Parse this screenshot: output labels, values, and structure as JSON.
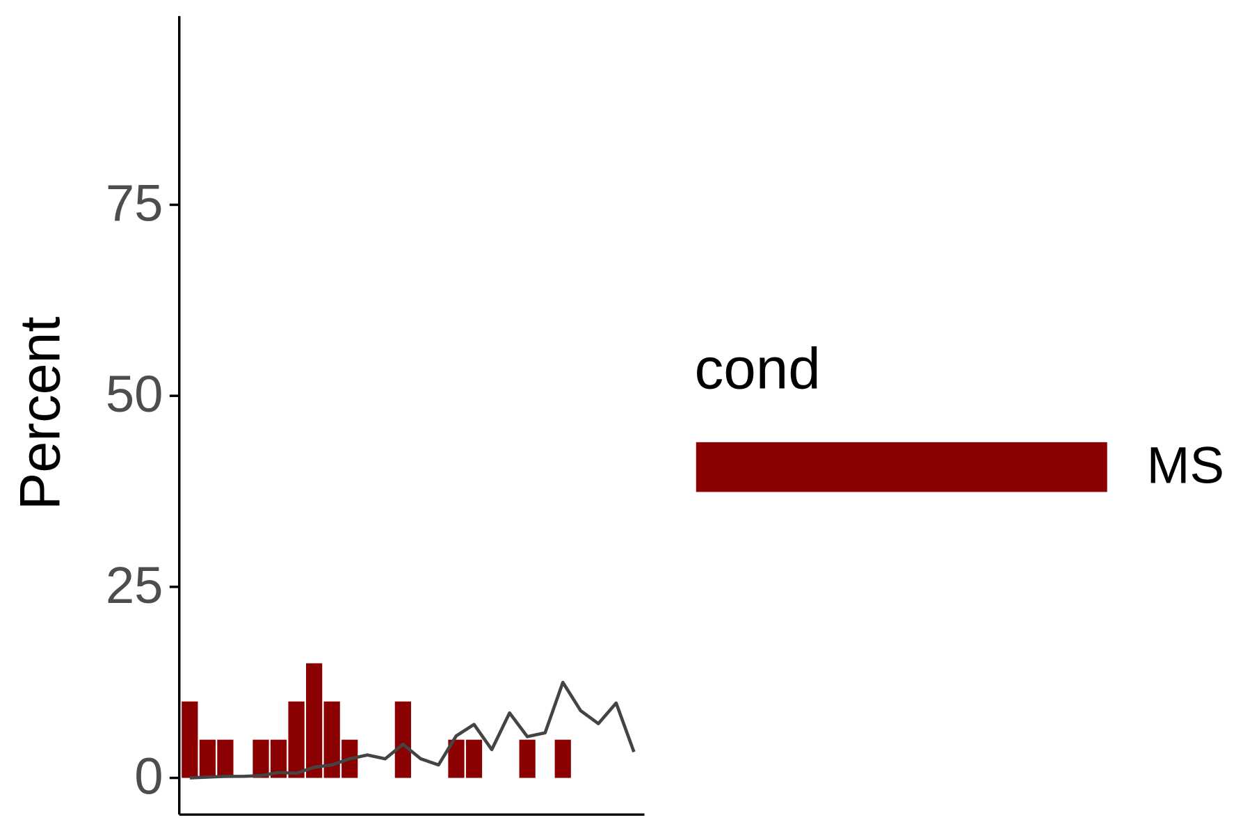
{
  "chart_data": {
    "type": "bar",
    "y_label": "Percent",
    "legend_title": "cond",
    "series": [
      {
        "name": "MS",
        "color": "#8b0000",
        "values": [
          10,
          5,
          5,
          null,
          5,
          5,
          10,
          15,
          10,
          5,
          null,
          null,
          10,
          null,
          null,
          5,
          5,
          null,
          null,
          5,
          null,
          5,
          null,
          null,
          null,
          null
        ]
      }
    ],
    "line": {
      "color": "#444444",
      "values": [
        0,
        0.1,
        0.2,
        0.2,
        0.3,
        0.7,
        0.6,
        1.4,
        1.7,
        2.5,
        3.0,
        2.5,
        4.4,
        2.5,
        1.7,
        5.5,
        7.0,
        3.7,
        8.5,
        5.4,
        5.9,
        12.5,
        8.8,
        7.1,
        9.8,
        3.4
      ]
    },
    "ylim": [
      -4.8,
      99.7
    ],
    "yticks": [
      0,
      25,
      50,
      75
    ],
    "grid": false
  }
}
